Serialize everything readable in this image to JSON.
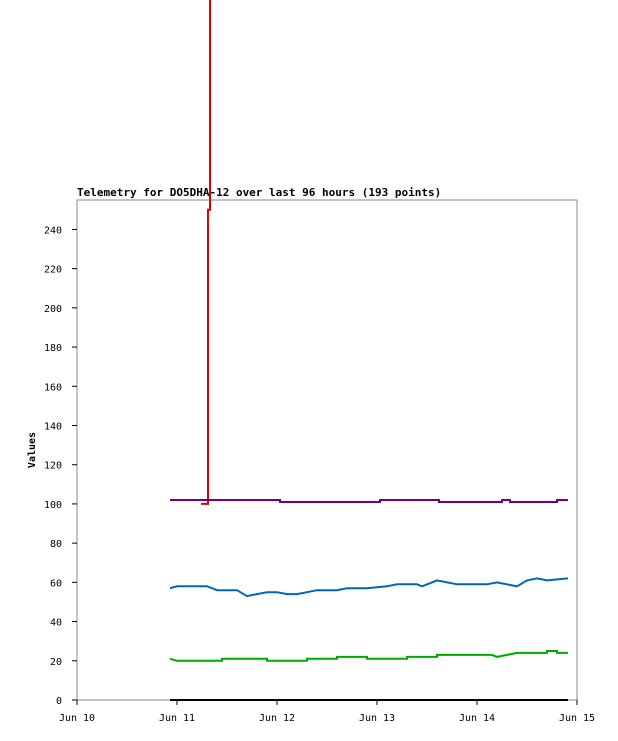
{
  "chart_data": {
    "type": "line",
    "title": "Telemetry for DO5DHA-12 over last 96 hours (193 points)",
    "y_label": "Values",
    "xlim": [
      10,
      15
    ],
    "xticks": [
      {
        "value": 10,
        "label": "Jun 10"
      },
      {
        "value": 11,
        "label": "Jun 11"
      },
      {
        "value": 12,
        "label": "Jun 12"
      },
      {
        "value": 13,
        "label": "Jun 13"
      },
      {
        "value": 14,
        "label": "Jun 14"
      },
      {
        "value": 15,
        "label": "Jun 15"
      }
    ],
    "ylim": [
      0,
      255
    ],
    "yticks": [
      0,
      20,
      40,
      60,
      80,
      100,
      120,
      140,
      160,
      180,
      200,
      220,
      240
    ],
    "series": [
      {
        "color": "#dd0000",
        "x": [
          11.24,
          11.31,
          11.31,
          11.33,
          11.33
        ],
        "values": [
          100,
          100,
          250,
          250,
          357
        ]
      },
      {
        "color": "#770077",
        "x": [
          10.93,
          12.03,
          12.03,
          13.03,
          13.03,
          13.62,
          13.62,
          14.25,
          14.25,
          14.33,
          14.33,
          14.8,
          14.8,
          14.91
        ],
        "values": [
          102,
          102,
          101,
          101,
          102,
          102,
          101,
          101,
          102,
          102,
          101,
          101,
          102,
          102
        ]
      },
      {
        "color": "#0066bb",
        "x": [
          10.93,
          11.0,
          11.3,
          11.35,
          11.4,
          11.6,
          11.7,
          11.8,
          11.9,
          12.0,
          12.1,
          12.2,
          12.3,
          12.4,
          12.6,
          12.7,
          12.9,
          13.1,
          13.2,
          13.4,
          13.45,
          13.55,
          13.6,
          13.8,
          14.1,
          14.2,
          14.4,
          14.5,
          14.6,
          14.7,
          14.91
        ],
        "values": [
          57,
          58,
          58,
          57,
          56,
          56,
          53,
          54,
          55,
          55,
          54,
          54,
          55,
          56,
          56,
          57,
          57,
          58,
          59,
          59,
          58,
          60,
          61,
          59,
          59,
          60,
          58,
          61,
          62,
          61,
          62
        ]
      },
      {
        "color": "#00aa00",
        "x": [
          10.93,
          11.0,
          11.45,
          11.45,
          11.9,
          11.9,
          12.3,
          12.3,
          12.6,
          12.6,
          12.9,
          12.9,
          13.3,
          13.3,
          13.6,
          13.6,
          14.15,
          14.2,
          14.3,
          14.4,
          14.7,
          14.7,
          14.8,
          14.8,
          14.91
        ],
        "values": [
          21,
          20,
          20,
          21,
          21,
          20,
          20,
          21,
          21,
          22,
          22,
          21,
          21,
          22,
          22,
          23,
          23,
          22,
          23,
          24,
          24,
          25,
          25,
          24,
          24
        ]
      },
      {
        "color": "#000000",
        "x": [
          10.93,
          14.91
        ],
        "values": [
          0,
          0
        ]
      }
    ]
  }
}
